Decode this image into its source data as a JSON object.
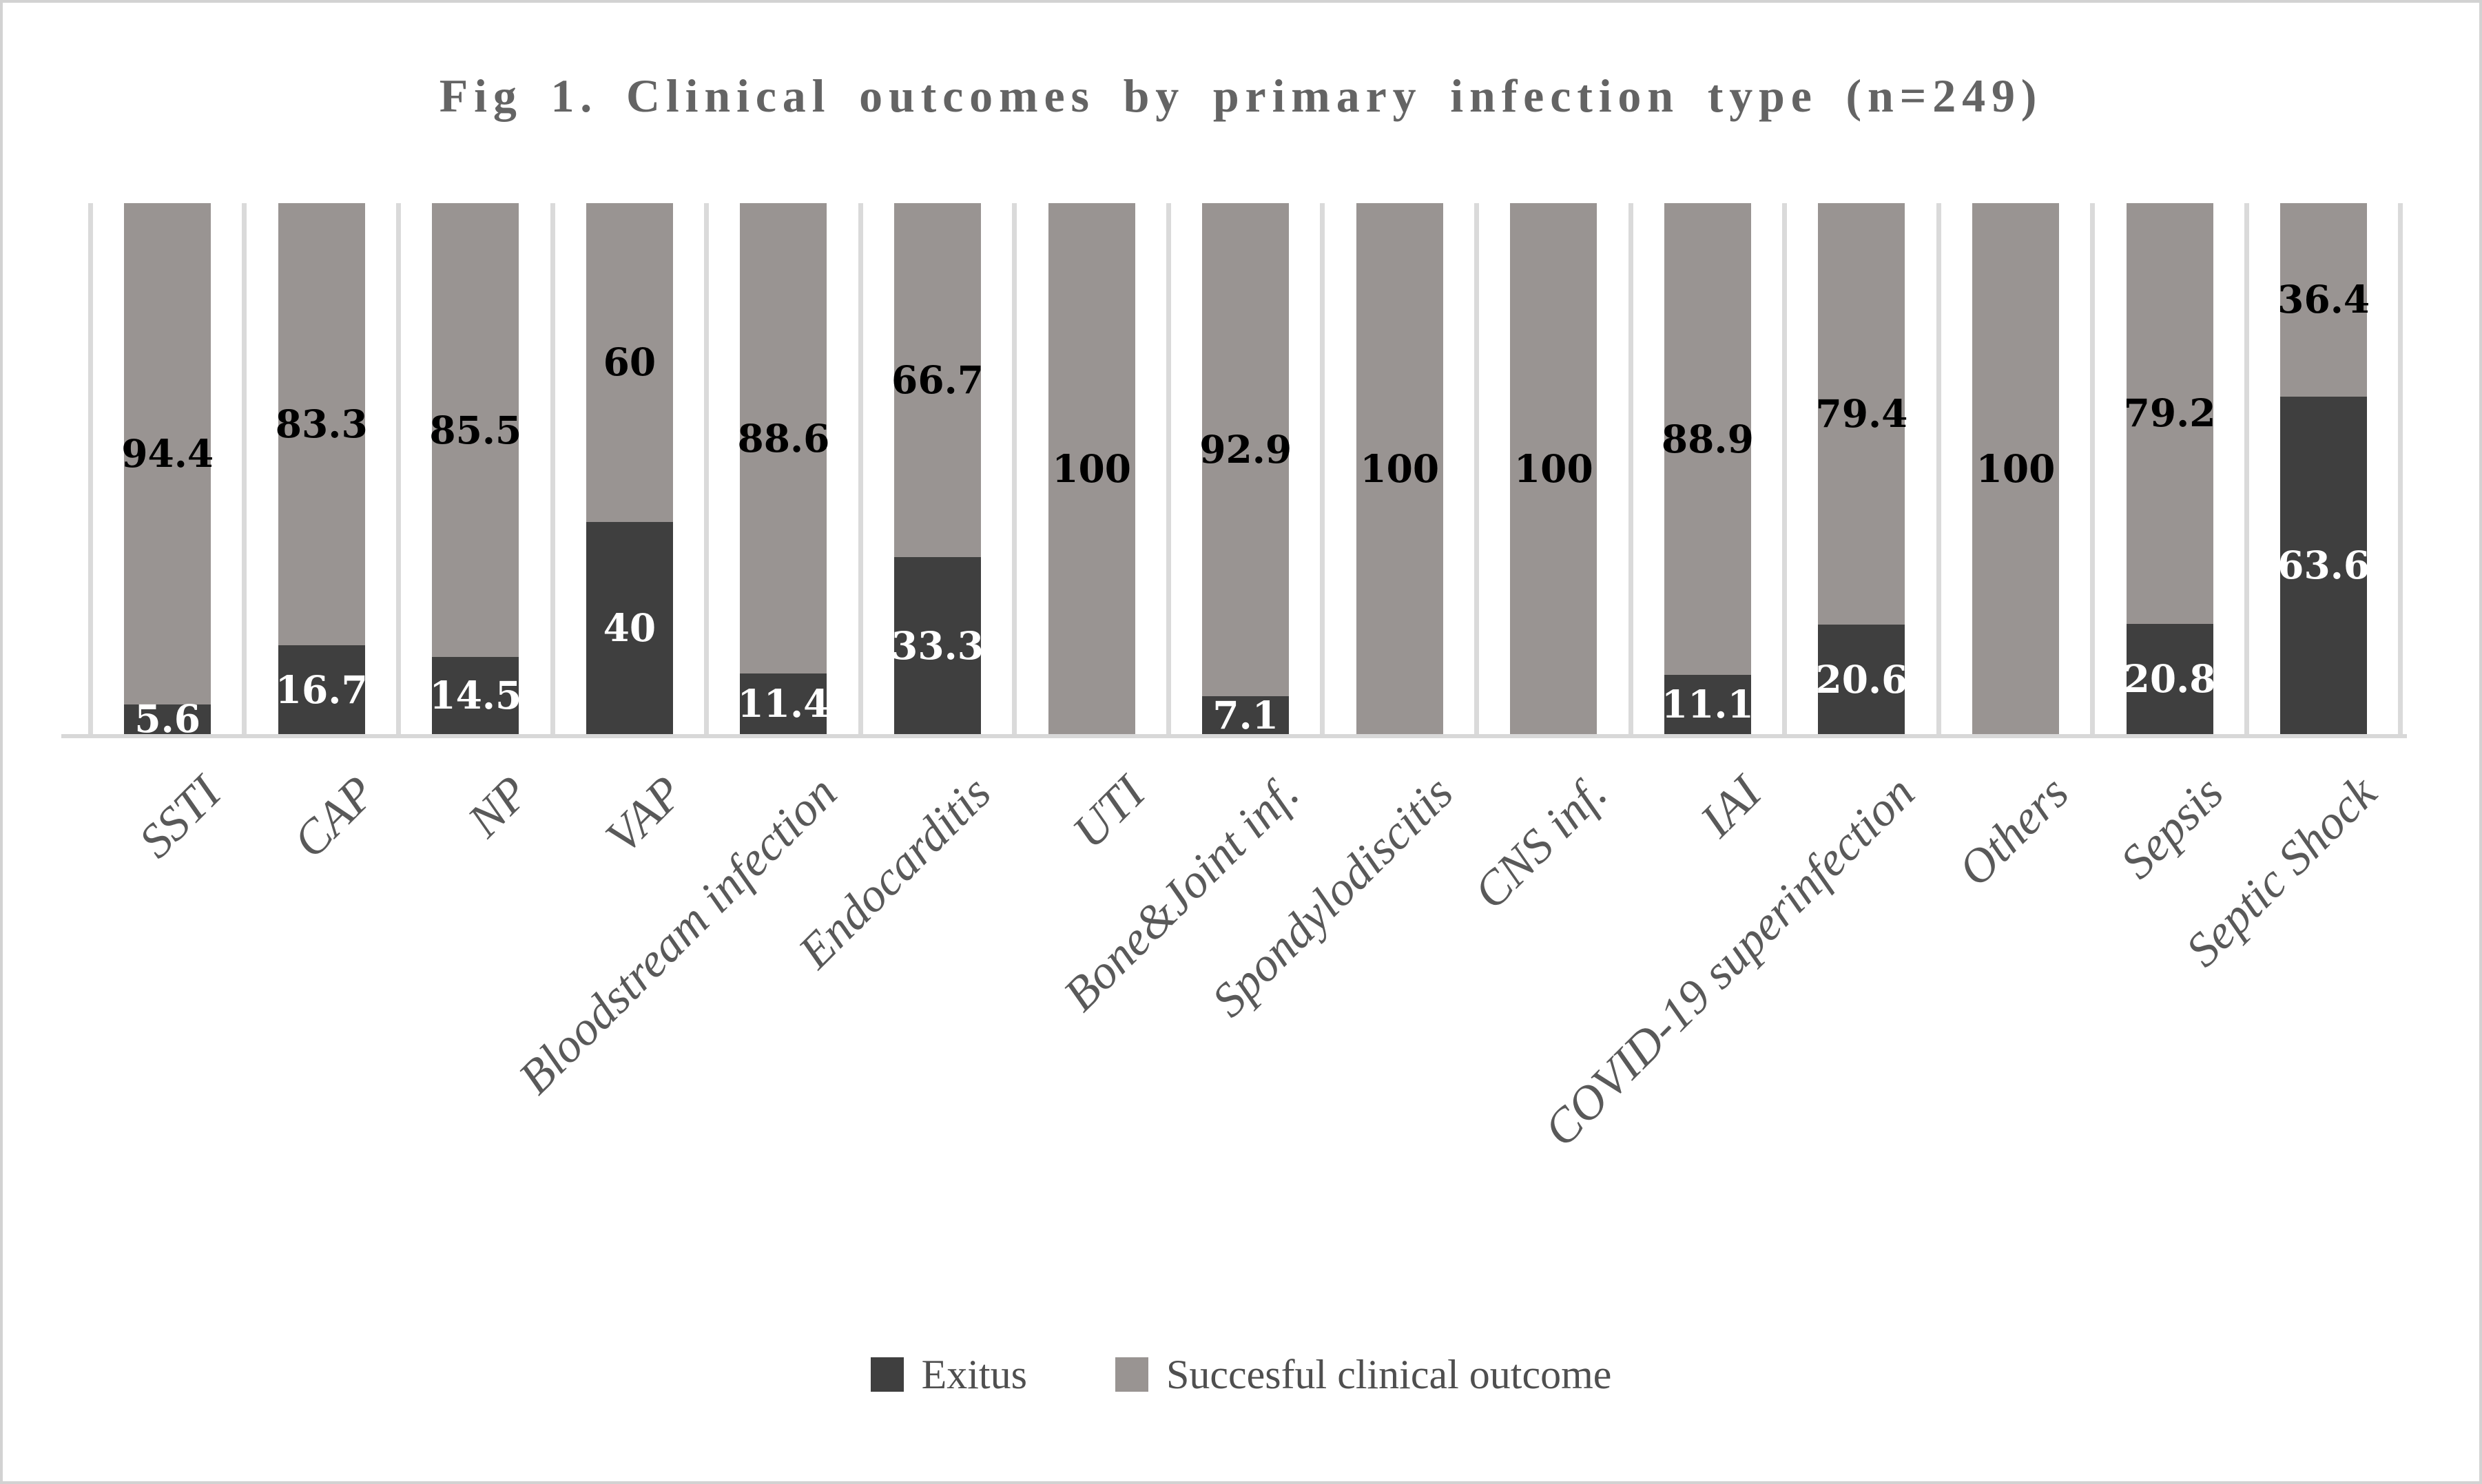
{
  "figure": {
    "title": "Fig 1. Clinical outcomes by primary infection type (n=249)"
  },
  "colors": {
    "exitus": "#3f3f3f",
    "success": "#999492",
    "gridline": "#dadada",
    "axis_line": "#d8d8d8",
    "title_text": "#646464",
    "axis_text": "#595959",
    "label_on_dark": "#ffffff",
    "label_on_gray": "#000000"
  },
  "chart_data": {
    "type": "bar",
    "subtype": "stacked-percentage",
    "title": "Fig 1. Clinical outcomes by primary infection type (n=249)",
    "xlabel": "",
    "ylabel": "",
    "ylim": [
      0,
      100
    ],
    "grid": "vertical-category-separators",
    "legend_position": "bottom",
    "categories": [
      "SSTI",
      "CAP",
      "NP",
      "VAP",
      "Bloodstream infection",
      "Endocarditis",
      "UTI",
      "Bone&Joint inf.",
      "Spondylodiscitis",
      "CNS inf.",
      "IAI",
      "COVID-19 superinfection",
      "Others",
      "Sepsis",
      "Septic Shock"
    ],
    "series": [
      {
        "name": "Exitus",
        "color": "#3f3f3f",
        "label_color": "#ffffff",
        "values": [
          5.6,
          16.7,
          14.5,
          40,
          11.4,
          33.3,
          0,
          7.1,
          0,
          0,
          11.1,
          20.6,
          0,
          20.8,
          63.6
        ],
        "labels": [
          "5.6",
          "16.7",
          "14.5",
          "40",
          "11.4",
          "33.3",
          "",
          "7.1",
          "",
          "",
          "11.1",
          "20.6",
          "",
          "20.8",
          "63.6"
        ]
      },
      {
        "name": "Succesful clinical outcome",
        "color": "#999492",
        "label_color": "#000000",
        "values": [
          94.4,
          83.3,
          85.5,
          60,
          88.6,
          66.7,
          100,
          92.9,
          100,
          100,
          88.9,
          79.4,
          100,
          79.2,
          36.4
        ],
        "labels": [
          "94.4",
          "83.3",
          "85.5",
          "60",
          "88.6",
          "66.7",
          "100",
          "92.9",
          "100",
          "100",
          "88.9",
          "79.4",
          "100",
          "79.2",
          "36.4"
        ]
      }
    ]
  },
  "legend": {
    "items": [
      {
        "label": "Exitus",
        "color": "#3f3f3f"
      },
      {
        "label": "Succesful clinical outcome",
        "color": "#999492"
      }
    ]
  }
}
